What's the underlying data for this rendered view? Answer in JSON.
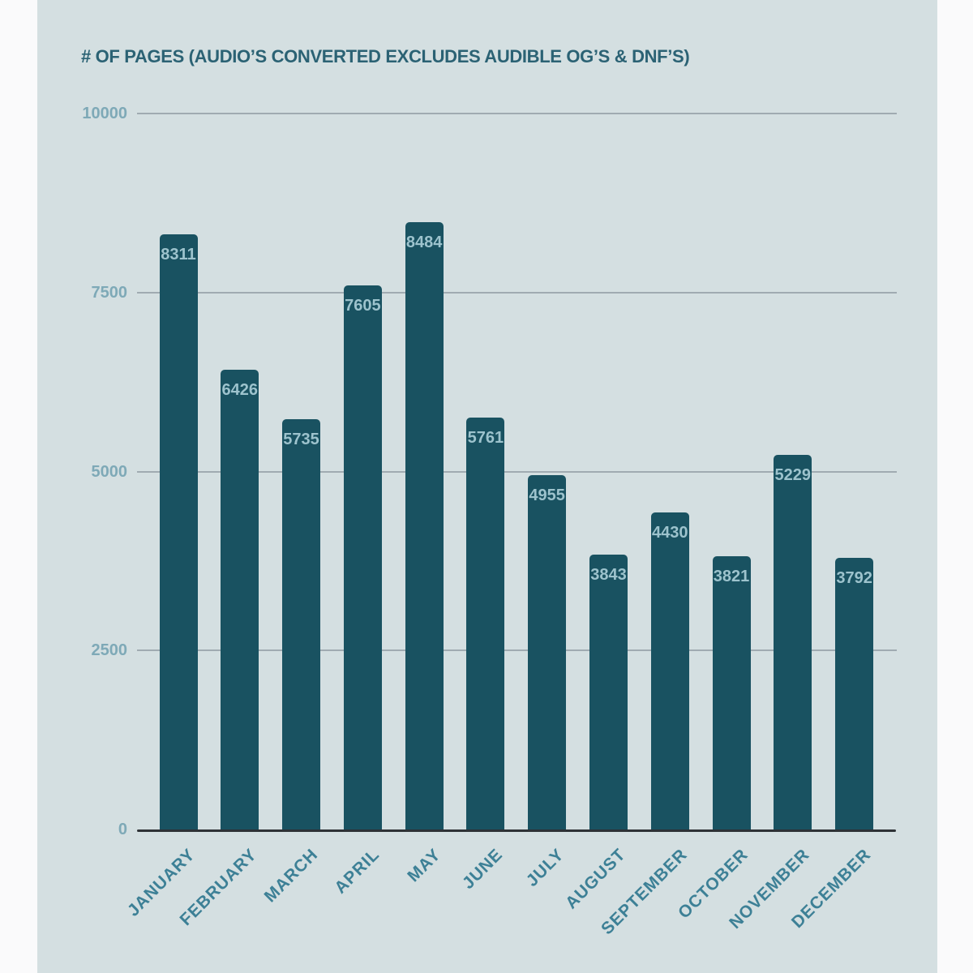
{
  "chart_data": {
    "type": "bar",
    "title": "# OF PAGES (AUDIO’S CONVERTED EXCLUDES AUDIBLE OG’S & DNF’S)",
    "categories": [
      "JANUARY",
      "FEBRUARY",
      "MARCH",
      "APRIL",
      "MAY",
      "JUNE",
      "JULY",
      "AUGUST",
      "SEPTEMBER",
      "OCTOBER",
      "NOVEMBER",
      "DECEMBER"
    ],
    "values": [
      8311,
      6426,
      5735,
      7605,
      8484,
      5761,
      4955,
      3843,
      4430,
      3821,
      5229,
      3792
    ],
    "bar_value_labels": [
      "8311",
      "6426",
      "5735",
      "7605",
      "8484",
      "5761",
      "4955",
      "3843",
      "4430",
      "3821",
      "5229",
      "3792"
    ],
    "y_ticks": [
      0,
      2500,
      5000,
      7500,
      10000
    ],
    "y_tick_labels": [
      "0",
      "2500",
      "5000",
      "7500",
      "10000"
    ],
    "ylim": [
      0,
      10000
    ],
    "xlabel": "",
    "ylabel": "",
    "grid": "horizontal",
    "legend": "none"
  },
  "colors": {
    "page_bg": "#fafafb",
    "panel_bg": "#d4dfe1",
    "bar": "#195261",
    "title": "#2b6274",
    "y_tick_label": "#7ea9b7",
    "x_tick_label": "#3d8096",
    "bar_value_label": "#9dc3cd",
    "gridline": "#a0abb1",
    "axis_line": "#2e3236"
  }
}
